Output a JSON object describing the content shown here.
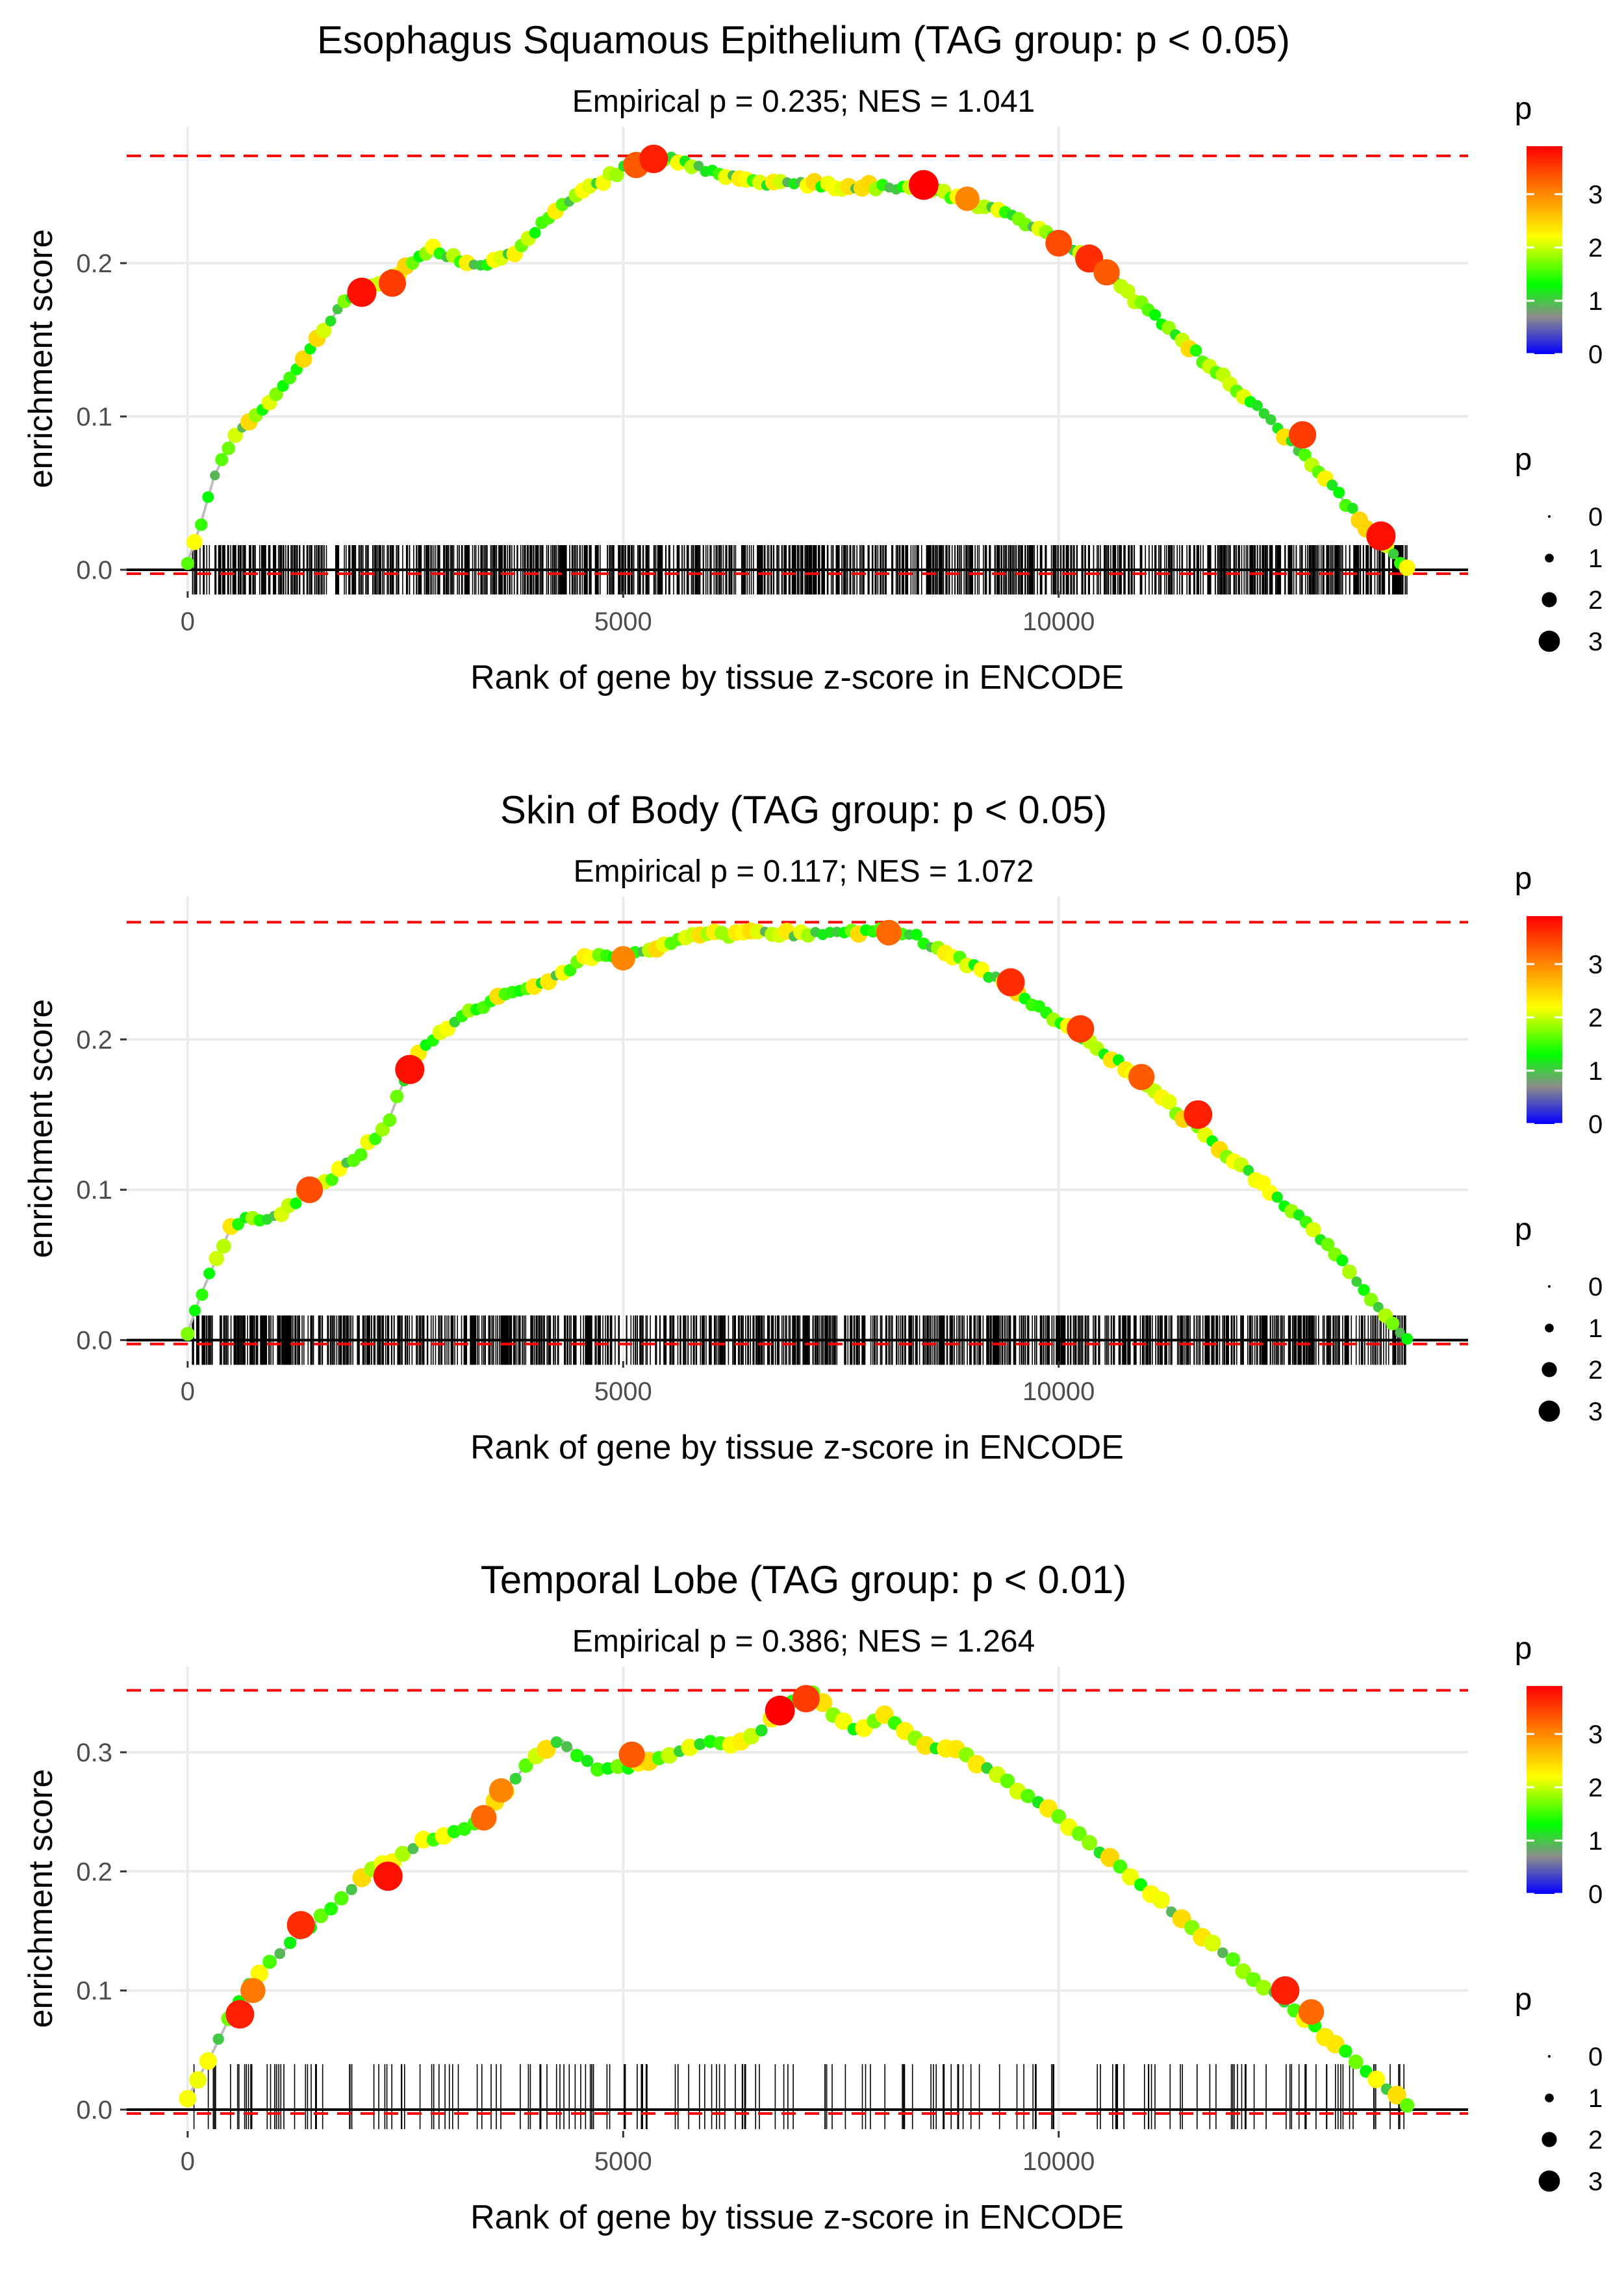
{
  "figure_title": "",
  "colors": {
    "gridline": "#ebebeb",
    "hline_max": "#ff0000",
    "baseline": "#000000",
    "path_line": "#bebebe",
    "gradient_stops": [
      "#0000ff",
      "#8c8c8c",
      "#00ff00",
      "#ffff00",
      "#ff0000"
    ]
  },
  "chart_data": [
    {
      "type": "line",
      "title": "Esophagus Squamous Epithelium (TAG group: p < 0.05)",
      "subtitle": "Empirical p = 0.235; NES = 1.041",
      "xlabel": "Rank of gene by tissue z-score in ENCODE",
      "ylabel": "enrichment score",
      "xlim": [
        -700,
        14700
      ],
      "ylim": [
        -0.014,
        0.289
      ],
      "xticks": [
        0,
        5000,
        10000
      ],
      "xtick_labels": [
        "0",
        "5000",
        "10000"
      ],
      "yticks": [
        0.0,
        0.1,
        0.2
      ],
      "ytick_labels": [
        "0.0",
        "0.1",
        "0.2"
      ],
      "max_es": 0.27,
      "curve_x": [
        0,
        150,
        300,
        500,
        800,
        1000,
        1300,
        1600,
        1800,
        2000,
        2300,
        2600,
        2800,
        3000,
        3300,
        3700,
        4000,
        4200,
        4500,
        4800,
        5000,
        5200,
        5400,
        5700,
        6000,
        6500,
        7000,
        7500,
        8000,
        8500,
        9000,
        9500,
        10000,
        10400,
        10800,
        11200,
        11600,
        12000,
        12400,
        12800,
        13200,
        13500,
        13800,
        14000
      ],
      "curve_y": [
        0.005,
        0.03,
        0.06,
        0.085,
        0.1,
        0.115,
        0.135,
        0.16,
        0.175,
        0.18,
        0.19,
        0.2,
        0.21,
        0.205,
        0.198,
        0.205,
        0.22,
        0.235,
        0.245,
        0.255,
        0.262,
        0.265,
        0.27,
        0.265,
        0.26,
        0.253,
        0.252,
        0.25,
        0.25,
        0.248,
        0.24,
        0.23,
        0.215,
        0.2,
        0.18,
        0.16,
        0.14,
        0.12,
        0.1,
        0.075,
        0.05,
        0.03,
        0.012,
        0.0
      ],
      "highlights": [
        {
          "x": 2000,
          "y": 0.181,
          "p": 3.8
        },
        {
          "x": 2350,
          "y": 0.187,
          "p": 3.5
        },
        {
          "x": 5150,
          "y": 0.264,
          "p": 3.3
        },
        {
          "x": 5350,
          "y": 0.268,
          "p": 3.7
        },
        {
          "x": 8450,
          "y": 0.251,
          "p": 3.9
        },
        {
          "x": 8950,
          "y": 0.242,
          "p": 3.0
        },
        {
          "x": 10000,
          "y": 0.213,
          "p": 3.4
        },
        {
          "x": 10350,
          "y": 0.203,
          "p": 3.6
        },
        {
          "x": 10550,
          "y": 0.194,
          "p": 3.3
        },
        {
          "x": 12800,
          "y": 0.088,
          "p": 3.5
        },
        {
          "x": 13700,
          "y": 0.022,
          "p": 3.8
        }
      ],
      "n_genes_in_set": 1100,
      "rug_x_range": [
        50,
        14000
      ],
      "rug_seed": 11,
      "point_count": 180,
      "colorbar": {
        "title": "p",
        "ticks": [
          0,
          1,
          2,
          3
        ],
        "tick_labels": [
          "0",
          "1",
          "2",
          "3"
        ],
        "range": [
          0,
          3.9
        ]
      },
      "size_legend": {
        "title": "p",
        "values": [
          0,
          1,
          2,
          3
        ],
        "labels": [
          "0",
          "1",
          "2",
          "3"
        ]
      }
    },
    {
      "type": "line",
      "title": "Skin of Body (TAG group: p < 0.05)",
      "subtitle": "Empirical p = 0.117; NES = 1.072",
      "xlabel": "Rank of gene by tissue z-score in ENCODE",
      "ylabel": "enrichment score",
      "xlim": [
        -700,
        14700
      ],
      "ylim": [
        -0.014,
        0.295
      ],
      "xticks": [
        0,
        5000,
        10000
      ],
      "xtick_labels": [
        "0",
        "5000",
        "10000"
      ],
      "yticks": [
        0.0,
        0.1,
        0.2
      ],
      "ytick_labels": [
        "0.0",
        "0.1",
        "0.2"
      ],
      "max_es": 0.278,
      "curve_x": [
        0,
        150,
        300,
        500,
        700,
        900,
        1100,
        1400,
        1700,
        2000,
        2300,
        2500,
        2700,
        3000,
        3300,
        3600,
        4000,
        4300,
        4600,
        5000,
        5400,
        5800,
        6200,
        6600,
        7000,
        7500,
        8000,
        8300,
        8800,
        9300,
        9800,
        10300,
        10800,
        11200,
        11600,
        12000,
        12400,
        12800,
        13200,
        13500,
        13800,
        14000
      ],
      "curve_y": [
        0.005,
        0.03,
        0.05,
        0.075,
        0.082,
        0.08,
        0.085,
        0.1,
        0.11,
        0.125,
        0.145,
        0.175,
        0.195,
        0.21,
        0.22,
        0.23,
        0.235,
        0.245,
        0.255,
        0.255,
        0.26,
        0.27,
        0.27,
        0.272,
        0.27,
        0.27,
        0.275,
        0.27,
        0.255,
        0.24,
        0.22,
        0.2,
        0.18,
        0.16,
        0.14,
        0.12,
        0.1,
        0.08,
        0.055,
        0.035,
        0.012,
        0.0
      ],
      "highlights": [
        {
          "x": 1400,
          "y": 0.1,
          "p": 3.4
        },
        {
          "x": 2550,
          "y": 0.18,
          "p": 3.8
        },
        {
          "x": 5000,
          "y": 0.254,
          "p": 3.0
        },
        {
          "x": 8050,
          "y": 0.271,
          "p": 3.2
        },
        {
          "x": 9450,
          "y": 0.238,
          "p": 3.6
        },
        {
          "x": 10250,
          "y": 0.207,
          "p": 3.5
        },
        {
          "x": 10950,
          "y": 0.175,
          "p": 3.3
        },
        {
          "x": 11600,
          "y": 0.15,
          "p": 3.7
        }
      ],
      "n_genes_in_set": 1100,
      "rug_x_range": [
        50,
        14000
      ],
      "rug_seed": 23,
      "point_count": 170,
      "colorbar": {
        "title": "p",
        "ticks": [
          0,
          1,
          2,
          3
        ],
        "tick_labels": [
          "0",
          "1",
          "2",
          "3"
        ],
        "range": [
          0,
          3.9
        ]
      },
      "size_legend": {
        "title": "p",
        "values": [
          0,
          1,
          2,
          3
        ],
        "labels": [
          "0",
          "1",
          "2",
          "3"
        ]
      }
    },
    {
      "type": "line",
      "title": "Temporal Lobe (TAG group: p < 0.01)",
      "subtitle": "Empirical p = 0.386; NES = 1.264",
      "xlabel": "Rank of gene by tissue z-score in ENCODE",
      "ylabel": "enrichment score",
      "xlim": [
        -700,
        14700
      ],
      "ylim": [
        -0.018,
        0.372
      ],
      "xticks": [
        0,
        5000,
        10000
      ],
      "xtick_labels": [
        "0",
        "5000",
        "10000"
      ],
      "yticks": [
        0.0,
        0.1,
        0.2,
        0.3
      ],
      "ytick_labels": [
        "0.0",
        "0.1",
        "0.2",
        "0.3"
      ],
      "max_es": 0.352,
      "curve_x": [
        0,
        150,
        300,
        500,
        700,
        900,
        1200,
        1500,
        1800,
        2100,
        2400,
        2700,
        3000,
        3300,
        3600,
        3900,
        4200,
        4300,
        4600,
        4800,
        5200,
        5600,
        6000,
        6300,
        6600,
        6900,
        7200,
        7500,
        7700,
        8000,
        8200,
        8500,
        8900,
        9500,
        10000,
        10500,
        11000,
        11500,
        12000,
        12500,
        13000,
        13500,
        14000
      ],
      "curve_y": [
        0.01,
        0.03,
        0.05,
        0.08,
        0.105,
        0.12,
        0.14,
        0.16,
        0.18,
        0.2,
        0.21,
        0.225,
        0.23,
        0.24,
        0.265,
        0.29,
        0.305,
        0.31,
        0.29,
        0.285,
        0.29,
        0.3,
        0.31,
        0.305,
        0.32,
        0.34,
        0.352,
        0.325,
        0.32,
        0.33,
        0.32,
        0.305,
        0.3,
        0.27,
        0.245,
        0.215,
        0.185,
        0.155,
        0.125,
        0.095,
        0.065,
        0.035,
        0.005
      ],
      "highlights": [
        {
          "x": 600,
          "y": 0.08,
          "p": 3.7
        },
        {
          "x": 750,
          "y": 0.1,
          "p": 3.1
        },
        {
          "x": 1300,
          "y": 0.155,
          "p": 3.6
        },
        {
          "x": 2300,
          "y": 0.196,
          "p": 3.8
        },
        {
          "x": 3400,
          "y": 0.245,
          "p": 3.2
        },
        {
          "x": 3600,
          "y": 0.268,
          "p": 3.0
        },
        {
          "x": 5100,
          "y": 0.298,
          "p": 3.3
        },
        {
          "x": 6800,
          "y": 0.335,
          "p": 3.9
        },
        {
          "x": 7100,
          "y": 0.345,
          "p": 3.5
        },
        {
          "x": 12600,
          "y": 0.1,
          "p": 3.7
        },
        {
          "x": 12900,
          "y": 0.082,
          "p": 3.2
        }
      ],
      "n_genes_in_set": 190,
      "rug_x_range": [
        50,
        14000
      ],
      "rug_seed": 37,
      "point_count": 120,
      "colorbar": {
        "title": "p",
        "ticks": [
          0,
          1,
          2,
          3
        ],
        "tick_labels": [
          "0",
          "1",
          "2",
          "3"
        ],
        "range": [
          0,
          3.9
        ]
      },
      "size_legend": {
        "title": "p",
        "values": [
          0,
          1,
          2,
          3
        ],
        "labels": [
          "0",
          "1",
          "2",
          "3"
        ]
      }
    }
  ]
}
